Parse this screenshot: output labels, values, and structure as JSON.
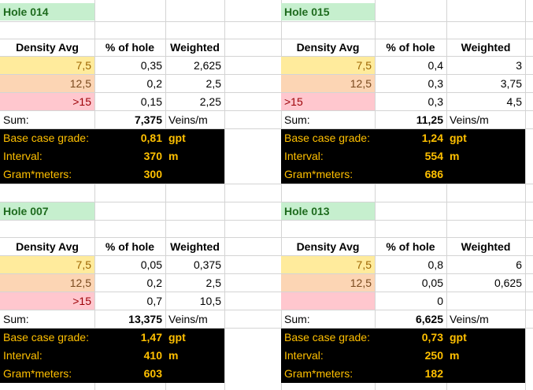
{
  "blocks": {
    "b014": {
      "hole": "Hole 014",
      "headers": {
        "density": "Density Avg",
        "pct": "% of hole",
        "weighted": "Weighted"
      },
      "rows": [
        {
          "density": "7,5",
          "pct": "0,35",
          "weighted": "2,625"
        },
        {
          "density": "12,5",
          "pct": "0,2",
          "weighted": "2,5"
        },
        {
          "density": ">15",
          "pct": "0,15",
          "weighted": "2,25"
        }
      ],
      "sum_label": "Sum:",
      "sum_value": "7,375",
      "sum_unit": "Veins/m",
      "grade_label": "Base case grade:",
      "grade_value": "0,81",
      "grade_unit": "gpt",
      "interval_label": "Interval:",
      "interval_value": "370",
      "interval_unit": "m",
      "gm_label": "Gram*meters:",
      "gm_value": "300"
    },
    "b015": {
      "hole": "Hole 015",
      "headers": {
        "density": "Density Avg",
        "pct": "% of hole",
        "weighted": "Weighted"
      },
      "rows": [
        {
          "density": "7,5",
          "pct": "0,4",
          "weighted": "3"
        },
        {
          "density": "12,5",
          "pct": "0,3",
          "weighted": "3,75"
        },
        {
          "density": ">15",
          "pct": "0,3",
          "weighted": "4,5"
        }
      ],
      "sum_label": "Sum:",
      "sum_value": "11,25",
      "sum_unit": "Veins/m",
      "grade_label": "Base case grade:",
      "grade_value": "1,24",
      "grade_unit": "gpt",
      "interval_label": "Interval:",
      "interval_value": "554",
      "interval_unit": "m",
      "gm_label": "Gram*meters:",
      "gm_value": "686"
    },
    "b007": {
      "hole": "Hole 007",
      "headers": {
        "density": "Density Avg",
        "pct": "% of hole",
        "weighted": "Weighted"
      },
      "rows": [
        {
          "density": "7,5",
          "pct": "0,05",
          "weighted": "0,375"
        },
        {
          "density": "12,5",
          "pct": "0,2",
          "weighted": "2,5"
        },
        {
          "density": ">15",
          "pct": "0,7",
          "weighted": "10,5"
        }
      ],
      "sum_label": "Sum:",
      "sum_value": "13,375",
      "sum_unit": "Veins/m",
      "grade_label": "Base case grade:",
      "grade_value": "1,47",
      "grade_unit": "gpt",
      "interval_label": "Interval:",
      "interval_value": "410",
      "interval_unit": "m",
      "gm_label": "Gram*meters:",
      "gm_value": "603"
    },
    "b013": {
      "hole": "Hole 013",
      "headers": {
        "density": "Density Avg",
        "pct": "% of hole",
        "weighted": "Weighted"
      },
      "rows": [
        {
          "density": "7,5",
          "pct": "0,8",
          "weighted": "6"
        },
        {
          "density": "12,5",
          "pct": "0,05",
          "weighted": "0,625"
        },
        {
          "density": "",
          "pct": "0",
          "weighted": ""
        }
      ],
      "sum_label": "Sum:",
      "sum_value": "6,625",
      "sum_unit": "Veins/m",
      "grade_label": "Base case grade:",
      "grade_value": "0,73",
      "grade_unit": "gpt",
      "interval_label": "Interval:",
      "interval_value": "250",
      "interval_unit": "m",
      "gm_label": "Gram*meters:",
      "gm_value": "182"
    }
  }
}
